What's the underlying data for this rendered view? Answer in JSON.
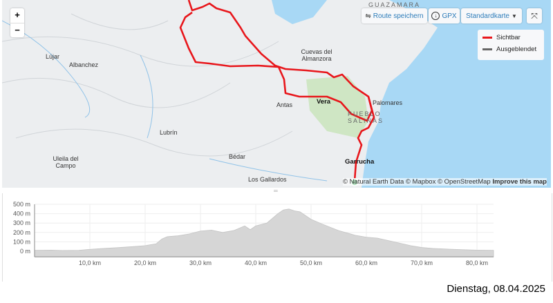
{
  "map": {
    "labels": [
      {
        "text": "GUAZAMARA",
        "style": "caps"
      },
      {
        "text": "Lújar"
      },
      {
        "text": "Albanchez"
      },
      {
        "text": "Cuevas del Almanzora"
      },
      {
        "text": "Antas"
      },
      {
        "text": "Vera",
        "style": "b"
      },
      {
        "text": "Palomares"
      },
      {
        "text": "PUEBLO SALINAS",
        "style": "caps"
      },
      {
        "text": "Lubrín"
      },
      {
        "text": "Uleila del Campo"
      },
      {
        "text": "Bédar"
      },
      {
        "text": "Garrucha",
        "style": "b"
      },
      {
        "text": "Los Gallardos"
      }
    ],
    "zoom_in": "+",
    "zoom_out": "−",
    "route_color": "#e8161b",
    "water_color": "#a8d8f5"
  },
  "toolbar": {
    "save_route": "Route speichern",
    "save_icon": "route-icon",
    "gpx": "GPX",
    "gpx_icon": "download-circle-icon",
    "map_style": "Standardkarte",
    "fullscreen_icon": "fullscreen-icon"
  },
  "legend": {
    "items": [
      {
        "label": "Sichtbar",
        "color": "#e8161b"
      },
      {
        "label": "Ausgeblendet",
        "color": "#666666"
      }
    ]
  },
  "attribution": {
    "text": "© Natural Earth Data © Mapbox © OpenStreetMap",
    "improve": "Improve this map"
  },
  "chart_data": {
    "type": "area",
    "xlabel": "",
    "ylabel": "",
    "xlim": [
      0,
      83
    ],
    "ylim": [
      -60,
      500
    ],
    "x_ticks": [
      "10,0 km",
      "20,0 km",
      "30,0 km",
      "40,0 km",
      "50,0 km",
      "60,0 km",
      "70,0 km",
      "80,0 km"
    ],
    "y_ticks": [
      "500 m",
      "400 m",
      "300 m",
      "200 m",
      "100 m",
      "0 m"
    ],
    "grid": true,
    "x": [
      0,
      3,
      5,
      8,
      10,
      12,
      15,
      18,
      20,
      22,
      23,
      24,
      26,
      28,
      30,
      32,
      34,
      36,
      38,
      39,
      40,
      42,
      44,
      45,
      46,
      47,
      48,
      50,
      52,
      55,
      58,
      60,
      62,
      65,
      68,
      70,
      72,
      75,
      78,
      80,
      83
    ],
    "y": [
      10,
      12,
      8,
      10,
      20,
      28,
      38,
      50,
      60,
      80,
      130,
      155,
      165,
      185,
      215,
      225,
      200,
      220,
      270,
      230,
      270,
      300,
      400,
      440,
      450,
      430,
      420,
      340,
      290,
      220,
      170,
      150,
      140,
      100,
      60,
      40,
      30,
      22,
      15,
      12,
      10
    ]
  },
  "footer": {
    "date": "Dienstag, 08.04.2025"
  }
}
